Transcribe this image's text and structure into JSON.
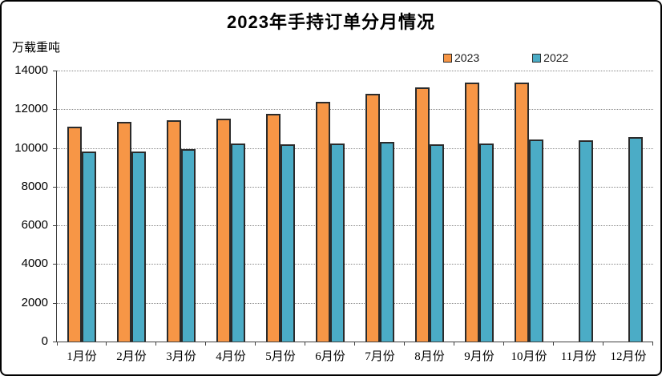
{
  "chart_data": {
    "type": "bar",
    "title": "2023年手持订单分月情况",
    "unit_label": "万载重吨",
    "categories": [
      "1月份",
      "2月份",
      "3月份",
      "4月份",
      "5月份",
      "6月份",
      "7月份",
      "8月份",
      "9月份",
      "10月份",
      "11月份",
      "12月份"
    ],
    "series": [
      {
        "name": "2023",
        "color": "#F79646",
        "values": [
          11100,
          11350,
          11450,
          11500,
          11750,
          12380,
          12800,
          13150,
          13400,
          13400,
          null,
          null
        ]
      },
      {
        "name": "2022",
        "color": "#4BACC6",
        "values": [
          9830,
          9800,
          9930,
          10230,
          10180,
          10250,
          10320,
          10200,
          10250,
          10450,
          10390,
          10560
        ]
      }
    ],
    "ylim": [
      0,
      14000
    ],
    "ytick_interval": 2000,
    "yticks": [
      0,
      2000,
      4000,
      6000,
      8000,
      10000,
      12000,
      14000
    ],
    "xlabel": "",
    "ylabel": "万载重吨",
    "grid": "horizontal-dotted",
    "legend_position": "top-right"
  },
  "colors": {
    "series_2023": "#F79646",
    "series_2022": "#4BACC6",
    "bar_border": "#2b2b2b",
    "gridline": "#8a8a8a",
    "axis": "#404040",
    "frame_border": "#000000",
    "background": "#ffffff"
  }
}
